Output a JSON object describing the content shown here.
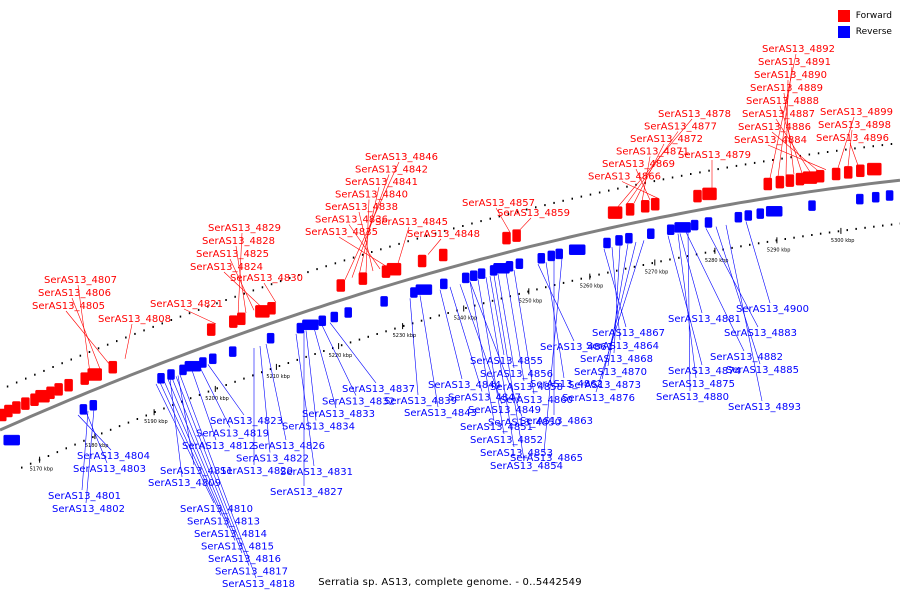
{
  "legend": {
    "forward_label": "Forward",
    "reverse_label": "Reverse",
    "forward_color": "#ff0000",
    "reverse_color": "#0000ff"
  },
  "caption": "Serratia sp. AS13, complete genome. - 0..5442549",
  "colors": {
    "backbone": "#808080",
    "forward": "#ff0000",
    "reverse": "#0000ff"
  },
  "scale": {
    "unit": "kbp",
    "ticks": [
      5170,
      5180,
      5190,
      5200,
      5210,
      5220,
      5230,
      5240,
      5250,
      5260,
      5270,
      5280,
      5290,
      5300
    ]
  },
  "labels": {
    "forward": [
      "SerAS13_4807",
      "SerAS13_4806",
      "SerAS13_4805",
      "SerAS13_4808",
      "SerAS13_4821",
      "SerAS13_4829",
      "SerAS13_4828",
      "SerAS13_4825",
      "SerAS13_4824",
      "SerAS13_4830",
      "SerAS13_4846",
      "SerAS13_4842",
      "SerAS13_4841",
      "SerAS13_4840",
      "SerAS13_4838",
      "SerAS13_4836",
      "SerAS13_4835",
      "SerAS13_4845",
      "SerAS13_4848",
      "SerAS13_4857",
      "SerAS13_4859",
      "SerAS13_4878",
      "SerAS13_4877",
      "SerAS13_4872",
      "SerAS13_4871",
      "SerAS13_4869",
      "SerAS13_4866",
      "SerAS13_4879",
      "SerAS13_4892",
      "SerAS13_4891",
      "SerAS13_4890",
      "SerAS13_4889",
      "SerAS13_4888",
      "SerAS13_4887",
      "SerAS13_4886",
      "SerAS13_4884",
      "SerAS13_4899",
      "SerAS13_4898",
      "SerAS13_4896"
    ],
    "reverse": [
      "SerAS13_4804",
      "SerAS13_4803",
      "SerAS13_4801",
      "SerAS13_4802",
      "SerAS13_4823",
      "SerAS13_4819",
      "SerAS13_4812",
      "SerAS13_4811",
      "SerAS13_4809",
      "SerAS13_4810",
      "SerAS13_4813",
      "SerAS13_4814",
      "SerAS13_4815",
      "SerAS13_4816",
      "SerAS13_4817",
      "SerAS13_4818",
      "SerAS13_4826",
      "SerAS13_4822",
      "SerAS13_4820",
      "SerAS13_4831",
      "SerAS13_4827",
      "SerAS13_4837",
      "SerAS13_4832",
      "SerAS13_4833",
      "SerAS13_4834",
      "SerAS13_4839",
      "SerAS13_4843",
      "SerAS13_4844",
      "SerAS13_4847",
      "SerAS13_4849",
      "SerAS13_4850",
      "SerAS13_4851",
      "SerAS13_4852",
      "SerAS13_4853",
      "SerAS13_4854",
      "SerAS13_4855",
      "SerAS13_4856",
      "SerAS13_4858",
      "SerAS13_4860",
      "SerAS13_4861",
      "SerAS13_4862",
      "SerAS13_4863",
      "SerAS13_4865",
      "SerAS13_4867",
      "SerAS13_4864",
      "SerAS13_4868",
      "SerAS13_4870",
      "SerAS13_4873",
      "SerAS13_4876",
      "SerAS13_4874",
      "SerAS13_4875",
      "SerAS13_4880",
      "SerAS13_4881",
      "SerAS13_4882",
      "SerAS13_4883",
      "SerAS13_4885",
      "SerAS13_4893",
      "SerAS13_4900"
    ]
  }
}
